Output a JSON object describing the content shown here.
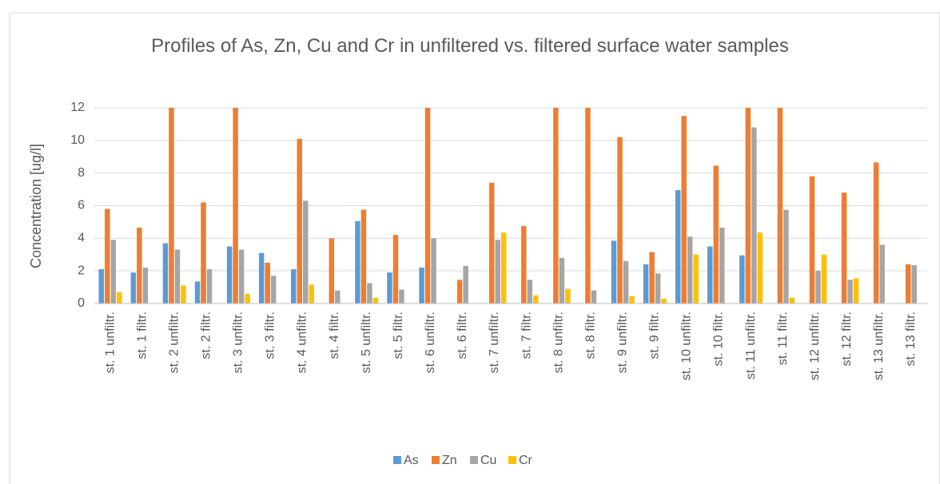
{
  "chart_data": {
    "type": "bar",
    "title": "Profiles of As, Zn, Cu and Cr in unfiltered vs. filtered  surface water samples",
    "y_label": "Concentration [ug/l]",
    "categories": [
      "st. 1 unfiltr.",
      "st. 1 filtr.",
      "st. 2 unfiltr.",
      "st. 2 filtr.",
      "st. 3 unfiltr.",
      "st. 3 filtr.",
      "st. 4 unfiltr.",
      "st. 4 filtr.",
      "st. 5 unfiltr.",
      "st. 5 filtr.",
      "st. 6 unfiltr.",
      "st. 6 filtr.",
      "st. 7 unfiltr.",
      "st. 7 filtr.",
      "st. 8 unfiltr.",
      "st. 8 filtr.",
      "st. 9 unfiltr.",
      "st. 9 filtr.",
      "st. 10 unfiltr.",
      "st. 10 filtr.",
      "st. 11 unfiltr.",
      "st. 11 filtr.",
      "st. 12 unfiltr.",
      "st. 12 filtr.",
      "st. 13 unfiltr.",
      "st. 13 filtr."
    ],
    "series": [
      {
        "name": "As",
        "color": "#5b9bd5",
        "values": [
          2.1,
          1.9,
          3.7,
          1.35,
          3.5,
          3.1,
          2.1,
          null,
          5.05,
          1.9,
          2.2,
          null,
          null,
          null,
          null,
          null,
          3.85,
          2.4,
          6.95,
          3.5,
          2.95,
          null,
          null,
          null,
          null,
          null
        ]
      },
      {
        "name": "Zn",
        "color": "#ed7d31",
        "values": [
          5.8,
          4.65,
          12,
          6.2,
          12,
          2.5,
          10.1,
          4.0,
          5.75,
          4.2,
          12,
          1.45,
          7.4,
          4.75,
          12,
          12,
          10.2,
          3.15,
          11.5,
          8.45,
          12,
          12,
          7.8,
          6.8,
          8.65,
          2.4
        ]
      },
      {
        "name": "Cu",
        "color": "#a5a5a5",
        "values": [
          3.9,
          2.2,
          3.3,
          2.1,
          3.3,
          1.7,
          6.3,
          0.8,
          1.25,
          0.85,
          4.0,
          2.3,
          3.9,
          1.45,
          2.8,
          0.8,
          2.6,
          1.85,
          4.1,
          4.65,
          10.8,
          5.75,
          2.0,
          1.45,
          3.6,
          2.35
        ]
      },
      {
        "name": "Cr",
        "color": "#ffc000",
        "values": [
          0.7,
          null,
          1.1,
          null,
          0.6,
          null,
          1.15,
          null,
          0.35,
          null,
          null,
          null,
          4.35,
          0.5,
          0.9,
          null,
          0.45,
          0.3,
          3.0,
          null,
          4.35,
          0.35,
          3.0,
          1.55,
          null,
          null
        ]
      }
    ],
    "ylim": [
      0,
      12
    ],
    "yticks": [
      0,
      2,
      4,
      6,
      8,
      10,
      12
    ],
    "grid": true,
    "legend": "bottom"
  }
}
